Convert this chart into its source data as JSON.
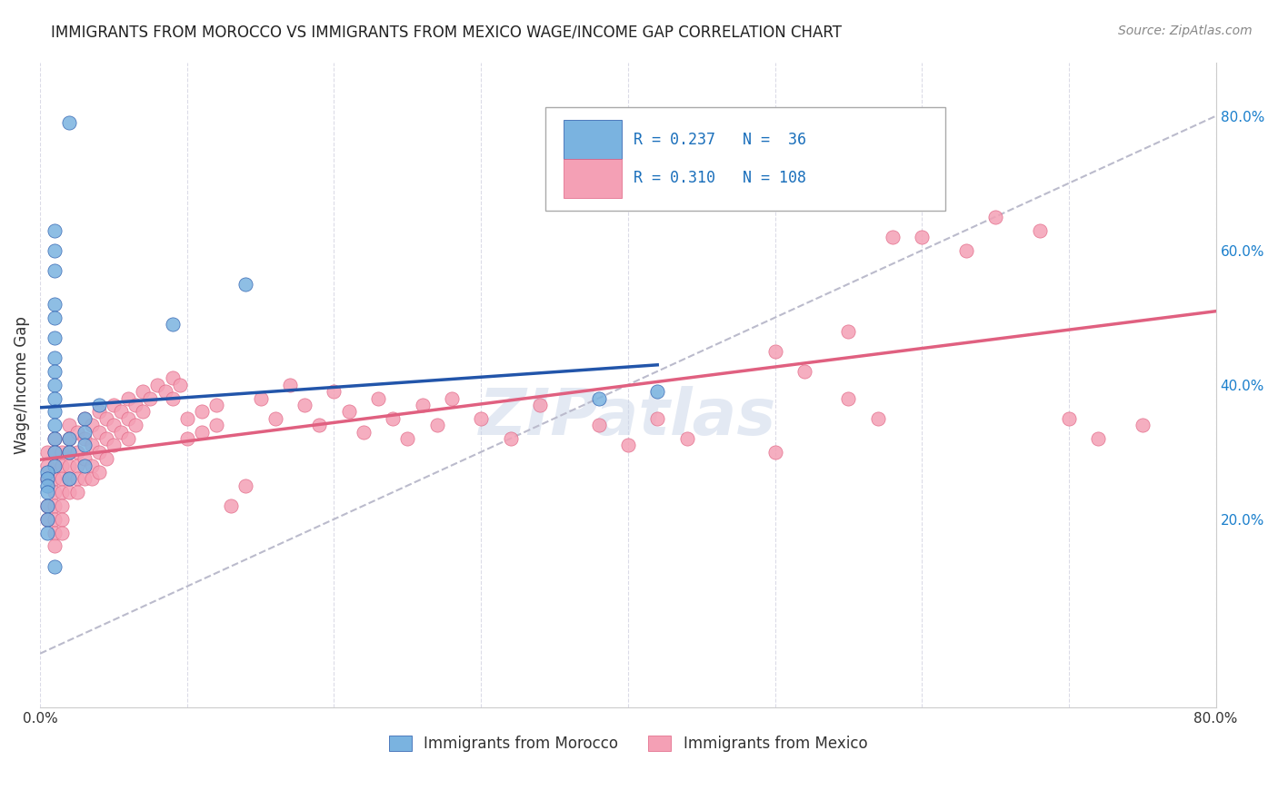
{
  "title": "IMMIGRANTS FROM MOROCCO VS IMMIGRANTS FROM MEXICO WAGE/INCOME GAP CORRELATION CHART",
  "source": "Source: ZipAtlas.com",
  "xlabel": "",
  "ylabel": "Wage/Income Gap",
  "xlim": [
    0,
    0.8
  ],
  "ylim": [
    -0.08,
    0.88
  ],
  "right_ylim": [
    0.0,
    0.8
  ],
  "right_yticks": [
    0.2,
    0.4,
    0.6,
    0.8
  ],
  "right_ytick_labels": [
    "20.0%",
    "40.0%",
    "60.0%",
    "80.0%"
  ],
  "xticks": [
    0.0,
    0.1,
    0.2,
    0.3,
    0.4,
    0.5,
    0.6,
    0.7,
    0.8
  ],
  "xtick_labels": [
    "0.0%",
    "",
    "",
    "",
    "",
    "",
    "",
    "",
    "80.0%"
  ],
  "ytick_labels": [],
  "morocco_R": 0.237,
  "morocco_N": 36,
  "mexico_R": 0.31,
  "mexico_N": 108,
  "morocco_color": "#7ab3e0",
  "mexico_color": "#f4a0b5",
  "morocco_line_color": "#2255aa",
  "mexico_line_color": "#e06080",
  "identity_line_color": "#bbbbcc",
  "watermark": "ZIPatlas",
  "watermark_color": "#c8d4e8",
  "legend_r_color": "#1a6fbb",
  "legend_n_color": "#1a6fbb",
  "morocco_scatter_x": [
    0.02,
    0.01,
    0.01,
    0.01,
    0.01,
    0.01,
    0.01,
    0.01,
    0.01,
    0.01,
    0.01,
    0.01,
    0.01,
    0.01,
    0.01,
    0.01,
    0.005,
    0.005,
    0.005,
    0.005,
    0.005,
    0.005,
    0.005,
    0.02,
    0.02,
    0.02,
    0.03,
    0.03,
    0.03,
    0.03,
    0.04,
    0.09,
    0.14,
    0.38,
    0.42,
    0.01
  ],
  "morocco_scatter_y": [
    0.79,
    0.63,
    0.6,
    0.57,
    0.52,
    0.5,
    0.47,
    0.44,
    0.42,
    0.4,
    0.38,
    0.36,
    0.34,
    0.32,
    0.3,
    0.28,
    0.27,
    0.26,
    0.25,
    0.24,
    0.22,
    0.2,
    0.18,
    0.32,
    0.3,
    0.26,
    0.35,
    0.33,
    0.31,
    0.28,
    0.37,
    0.49,
    0.55,
    0.38,
    0.39,
    0.13
  ],
  "mexico_scatter_x": [
    0.005,
    0.005,
    0.005,
    0.005,
    0.005,
    0.01,
    0.01,
    0.01,
    0.01,
    0.01,
    0.01,
    0.01,
    0.01,
    0.01,
    0.015,
    0.015,
    0.015,
    0.015,
    0.015,
    0.015,
    0.015,
    0.02,
    0.02,
    0.02,
    0.02,
    0.02,
    0.02,
    0.025,
    0.025,
    0.025,
    0.025,
    0.025,
    0.03,
    0.03,
    0.03,
    0.03,
    0.035,
    0.035,
    0.035,
    0.035,
    0.04,
    0.04,
    0.04,
    0.04,
    0.045,
    0.045,
    0.045,
    0.05,
    0.05,
    0.05,
    0.055,
    0.055,
    0.06,
    0.06,
    0.06,
    0.065,
    0.065,
    0.07,
    0.07,
    0.075,
    0.08,
    0.085,
    0.09,
    0.09,
    0.095,
    0.1,
    0.1,
    0.11,
    0.11,
    0.12,
    0.12,
    0.13,
    0.14,
    0.15,
    0.16,
    0.17,
    0.18,
    0.19,
    0.2,
    0.21,
    0.22,
    0.23,
    0.24,
    0.25,
    0.26,
    0.27,
    0.28,
    0.3,
    0.32,
    0.34,
    0.38,
    0.4,
    0.42,
    0.44,
    0.5,
    0.55,
    0.57,
    0.6,
    0.63,
    0.65,
    0.68,
    0.7,
    0.72,
    0.75,
    0.5,
    0.52,
    0.55,
    0.58
  ],
  "mexico_scatter_y": [
    0.28,
    0.3,
    0.26,
    0.22,
    0.2,
    0.32,
    0.3,
    0.28,
    0.26,
    0.24,
    0.22,
    0.2,
    0.18,
    0.16,
    0.3,
    0.28,
    0.26,
    0.24,
    0.22,
    0.2,
    0.18,
    0.34,
    0.32,
    0.3,
    0.28,
    0.26,
    0.24,
    0.33,
    0.3,
    0.28,
    0.26,
    0.24,
    0.35,
    0.32,
    0.29,
    0.26,
    0.34,
    0.31,
    0.28,
    0.26,
    0.36,
    0.33,
    0.3,
    0.27,
    0.35,
    0.32,
    0.29,
    0.37,
    0.34,
    0.31,
    0.36,
    0.33,
    0.38,
    0.35,
    0.32,
    0.37,
    0.34,
    0.39,
    0.36,
    0.38,
    0.4,
    0.39,
    0.41,
    0.38,
    0.4,
    0.35,
    0.32,
    0.36,
    0.33,
    0.37,
    0.34,
    0.22,
    0.25,
    0.38,
    0.35,
    0.4,
    0.37,
    0.34,
    0.39,
    0.36,
    0.33,
    0.38,
    0.35,
    0.32,
    0.37,
    0.34,
    0.38,
    0.35,
    0.32,
    0.37,
    0.34,
    0.31,
    0.35,
    0.32,
    0.3,
    0.38,
    0.35,
    0.62,
    0.6,
    0.65,
    0.63,
    0.35,
    0.32,
    0.34,
    0.45,
    0.42,
    0.48,
    0.62
  ]
}
